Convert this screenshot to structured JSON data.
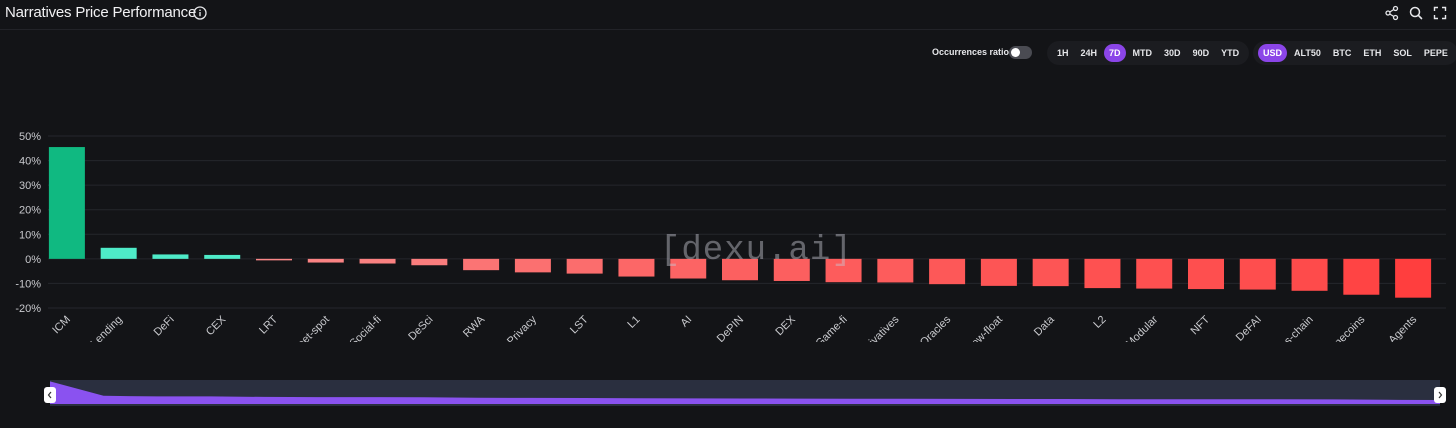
{
  "header": {
    "title": "Narratives Price Performance",
    "icons": [
      "info-icon",
      "share-icon",
      "search-icon",
      "fullscreen-icon"
    ]
  },
  "controls": {
    "occurrences_label": "Occurrences ratio",
    "occurrences_on": false,
    "timeframes": [
      "1H",
      "24H",
      "7D",
      "MTD",
      "30D",
      "90D",
      "YTD"
    ],
    "timeframe_active": "7D",
    "bases": [
      "USD",
      "ALT50",
      "BTC",
      "ETH",
      "SOL",
      "PEPE"
    ],
    "base_active": "USD"
  },
  "watermark": "[dexu.ai]",
  "colors": {
    "accent": "#8b45e8",
    "positive_strong": "#10b981",
    "positive_light": "#4eebc8",
    "negative_light": "#f98a8a",
    "negative_strong": "#ff3e3e"
  },
  "chart_data": {
    "type": "bar",
    "categories": [
      "ICM",
      "Lending",
      "DeFi",
      "CEX",
      "LRT",
      "Sweet-spot",
      "Social-fi",
      "DeSci",
      "RWA",
      "Privacy",
      "LST",
      "L1",
      "AI",
      "DePIN",
      "DEX",
      "Game-fi",
      "Derivatives",
      "Oracles",
      "Low-float",
      "Data",
      "L2",
      "Modular",
      "NFT",
      "DeFAI",
      "Cross-chain",
      "Memecoins",
      "AI-Agents"
    ],
    "values": [
      45.5,
      4.5,
      1.8,
      1.6,
      -0.6,
      -1.5,
      -1.9,
      -2.6,
      -4.6,
      -5.5,
      -6.0,
      -7.2,
      -8.0,
      -8.7,
      -9.0,
      -9.5,
      -9.6,
      -10.3,
      -11.0,
      -11.1,
      -11.9,
      -12.1,
      -12.3,
      -12.5,
      -13.0,
      -14.6,
      -15.8
    ],
    "yticks": [
      "50%",
      "40%",
      "30%",
      "20%",
      "10%",
      "0%",
      "-10%",
      "-20%"
    ],
    "ylim": [
      -20,
      50
    ],
    "grid": true,
    "legend": "none"
  }
}
